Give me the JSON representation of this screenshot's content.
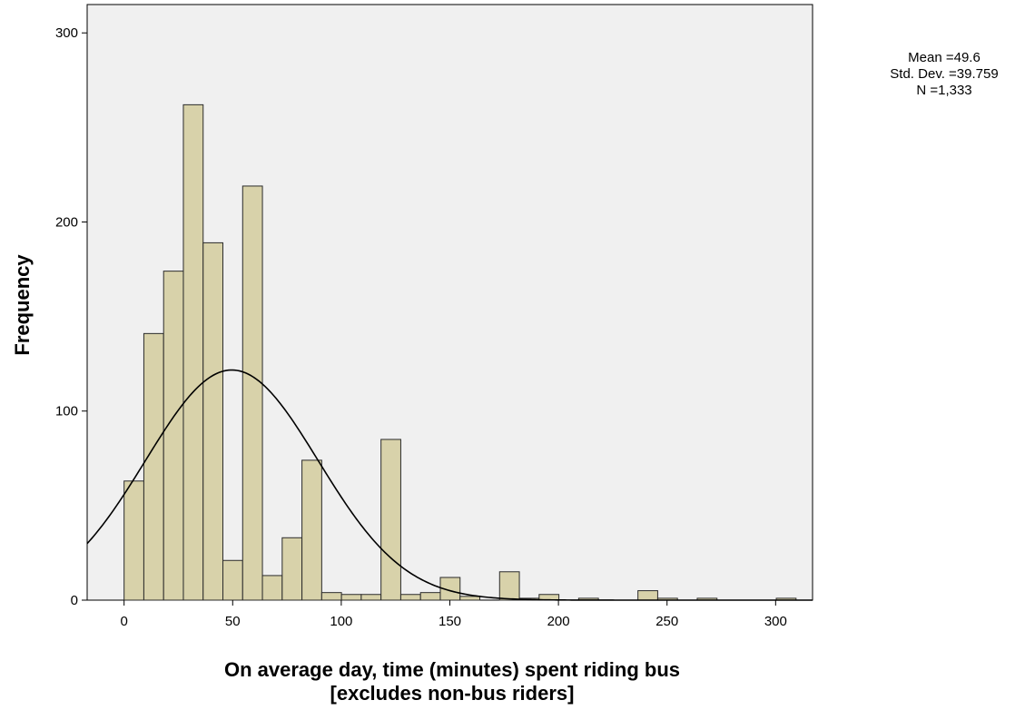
{
  "chart_data": {
    "type": "bar",
    "subtype": "histogram",
    "xlabel_line1": "On average day, time (minutes) spent riding bus",
    "xlabel_line2": "[excludes non-bus riders]",
    "ylabel": "Frequency",
    "xlim": [
      -17,
      317
    ],
    "ylim": [
      0,
      315
    ],
    "x_ticks": [
      0,
      50,
      100,
      150,
      200,
      250,
      300
    ],
    "y_ticks": [
      0,
      100,
      200,
      300
    ],
    "bin_width": 9.1,
    "bin_start": 0,
    "bins": [
      {
        "x0": 0,
        "count": 63
      },
      {
        "x0": 9.1,
        "count": 141
      },
      {
        "x0": 18.2,
        "count": 174
      },
      {
        "x0": 27.3,
        "count": 262
      },
      {
        "x0": 36.4,
        "count": 189
      },
      {
        "x0": 45.5,
        "count": 21
      },
      {
        "x0": 54.6,
        "count": 219
      },
      {
        "x0": 63.7,
        "count": 13
      },
      {
        "x0": 72.8,
        "count": 33
      },
      {
        "x0": 81.9,
        "count": 74
      },
      {
        "x0": 91.0,
        "count": 4
      },
      {
        "x0": 100.1,
        "count": 3
      },
      {
        "x0": 109.2,
        "count": 3
      },
      {
        "x0": 118.3,
        "count": 85
      },
      {
        "x0": 127.4,
        "count": 3
      },
      {
        "x0": 136.5,
        "count": 4
      },
      {
        "x0": 145.6,
        "count": 12
      },
      {
        "x0": 154.7,
        "count": 2
      },
      {
        "x0": 172.9,
        "count": 15
      },
      {
        "x0": 182.0,
        "count": 1
      },
      {
        "x0": 191.1,
        "count": 3
      },
      {
        "x0": 209.3,
        "count": 1
      },
      {
        "x0": 236.6,
        "count": 5
      },
      {
        "x0": 245.7,
        "count": 1
      },
      {
        "x0": 263.9,
        "count": 1
      },
      {
        "x0": 300.3,
        "count": 1
      }
    ],
    "normal_curve": {
      "mean": 49.6,
      "sd": 39.759,
      "n": 1333
    },
    "stats_lines": [
      "Mean =49.6",
      "Std. Dev. =39.759",
      "N =1,333"
    ],
    "grid": false,
    "colors": {
      "bar_fill": "#d8d2aa",
      "bar_stroke": "#2b2b2b",
      "plot_bg": "#f0f0f0",
      "curve": "#000000"
    }
  }
}
